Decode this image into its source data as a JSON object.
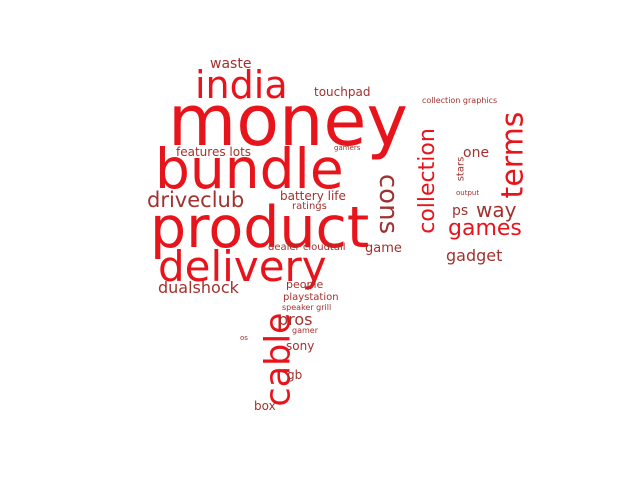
{
  "palette": {
    "red": "#e8141c",
    "dark_red": "#a0322f"
  },
  "words": [
    {
      "text": "money",
      "color": "#e8141c"
    },
    {
      "text": "bundle",
      "color": "#e8141c"
    },
    {
      "text": "product",
      "color": "#e8141c"
    },
    {
      "text": "delivery",
      "color": "#e8141c"
    },
    {
      "text": "india",
      "color": "#e8141c"
    },
    {
      "text": "cable",
      "color": "#e8141c"
    },
    {
      "text": "terms",
      "color": "#e8141c"
    },
    {
      "text": "collection",
      "color": "#e8141c"
    },
    {
      "text": "cons",
      "color": "#a0322f"
    },
    {
      "text": "games",
      "color": "#e8141c"
    },
    {
      "text": "way",
      "color": "#a0322f"
    },
    {
      "text": "driveclub",
      "color": "#a0322f"
    },
    {
      "text": "dualshock",
      "color": "#a0322f"
    },
    {
      "text": "gadget",
      "color": "#a0322f"
    },
    {
      "text": "pros",
      "color": "#a0322f"
    },
    {
      "text": "waste",
      "color": "#a0322f"
    },
    {
      "text": "one",
      "color": "#a0322f"
    },
    {
      "text": "ps",
      "color": "#a0322f"
    },
    {
      "text": "game",
      "color": "#a0322f"
    },
    {
      "text": "features lots",
      "color": "#a0322f"
    },
    {
      "text": "battery life",
      "color": "#a0322f"
    },
    {
      "text": "touchpad",
      "color": "#a0322f"
    },
    {
      "text": "stars",
      "color": "#a0322f"
    },
    {
      "text": "ratings",
      "color": "#a0322f"
    },
    {
      "text": "dealer cloudtail",
      "color": "#a0322f"
    },
    {
      "text": "people",
      "color": "#a0322f"
    },
    {
      "text": "playstation",
      "color": "#a0322f"
    },
    {
      "text": "speaker grill",
      "color": "#a0322f"
    },
    {
      "text": "gamer",
      "color": "#a0322f"
    },
    {
      "text": "sony",
      "color": "#a0322f"
    },
    {
      "text": "gb",
      "color": "#a0322f"
    },
    {
      "text": "box",
      "color": "#a0322f"
    },
    {
      "text": "os",
      "color": "#a0322f"
    },
    {
      "text": "collection graphics",
      "color": "#a0322f"
    },
    {
      "text": "gamers",
      "color": "#a0322f"
    },
    {
      "text": "output",
      "color": "#a0322f"
    }
  ]
}
